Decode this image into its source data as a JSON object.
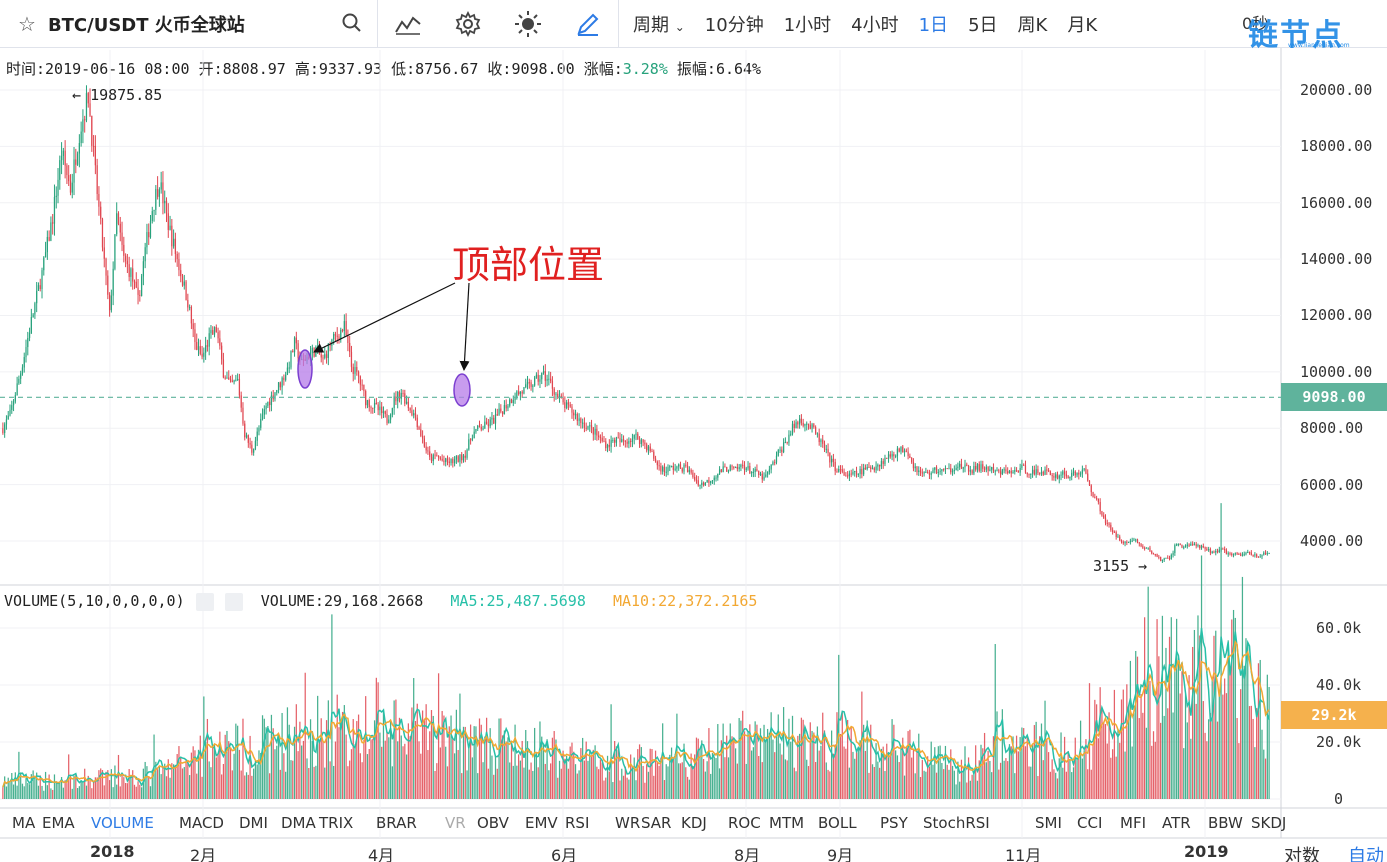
{
  "toolbar": {
    "symbol": "BTC/USDT 火币全球站",
    "periods": [
      "周期",
      "10分钟",
      "1小时",
      "4小时",
      "1日",
      "5日",
      "周K",
      "月K"
    ],
    "active_period": "1日",
    "timer": "0秒",
    "logo_text": "链节点",
    "logo_sub": "www.lianjiedian.com"
  },
  "info": {
    "time_label": "时间:",
    "time": "2019-06-16 08:00",
    "open_label": "开:",
    "open": "8808.97",
    "high_label": "高:",
    "high": "9337.93",
    "low_label": "低:",
    "low": "8756.67",
    "close_label": "收:",
    "close": "9098.00",
    "change_label": "涨幅:",
    "change": "3.28%",
    "amplitude_label": "振幅:",
    "amplitude": "6.64%"
  },
  "price_axis": {
    "ticks": [
      "20000.00",
      "18000.00",
      "16000.00",
      "14000.00",
      "12000.00",
      "10000.00",
      "8000.00",
      "6000.00",
      "4000.00"
    ],
    "current": "9098.00"
  },
  "markers": {
    "high": "19875.85",
    "low": "3155"
  },
  "annotation": "顶部位置",
  "volume": {
    "title": "VOLUME(5,10,0,0,0,0)",
    "value_label": "VOLUME:",
    "value": "29,168.2668",
    "ma5_label": "MA5:",
    "ma5": "25,487.5698",
    "ma10_label": "MA10:",
    "ma10": "22,372.2165",
    "ticks": [
      "60.0k",
      "40.0k",
      "20.0k",
      "0"
    ],
    "current": "29.2k"
  },
  "indicators": [
    "MA",
    "EMA",
    "VOLUME",
    "MACD",
    "DMI",
    "DMA",
    "TRIX",
    "BRAR",
    "VR",
    "OBV",
    "EMV",
    "RSI",
    "WR",
    "SAR",
    "KDJ",
    "ROC",
    "MTM",
    "BOLL",
    "PSY",
    "StochRSI",
    "SMI",
    "CCI",
    "MFI",
    "ATR",
    "BBW",
    "SKDJ"
  ],
  "active_indicator": "VOLUME",
  "time_axis": [
    "2018",
    "2月",
    "4月",
    "6月",
    "8月",
    "9月",
    "11月",
    "2019"
  ],
  "scale_buttons": {
    "log": "对数",
    "auto": "自动"
  },
  "colors": {
    "up": "#27a27c",
    "down": "#e0454f",
    "accent": "#2d7be5",
    "ma5": "#27c0a8",
    "ma10": "#f2a833",
    "price_line": "#5fb39c"
  },
  "chart_data": {
    "type": "candlestick",
    "price_ylim": [
      2800,
      20500
    ],
    "volume_ylim": [
      0,
      70000
    ],
    "anchors": [
      [
        0,
        8000
      ],
      [
        4,
        8500
      ],
      [
        10,
        10000
      ],
      [
        16,
        11800
      ],
      [
        22,
        13500
      ],
      [
        28,
        15500
      ],
      [
        33,
        17800
      ],
      [
        38,
        16500
      ],
      [
        43,
        18500
      ],
      [
        48,
        19800
      ],
      [
        52,
        17000
      ],
      [
        56,
        14500
      ],
      [
        60,
        12000
      ],
      [
        64,
        15500
      ],
      [
        68,
        14000
      ],
      [
        72,
        13500
      ],
      [
        76,
        12500
      ],
      [
        80,
        14300
      ],
      [
        84,
        15800
      ],
      [
        88,
        16800
      ],
      [
        92,
        15500
      ],
      [
        96,
        14500
      ],
      [
        100,
        13500
      ],
      [
        104,
        12500
      ],
      [
        108,
        11000
      ],
      [
        112,
        10500
      ],
      [
        116,
        11200
      ],
      [
        120,
        11500
      ],
      [
        124,
        10000
      ],
      [
        128,
        9500
      ],
      [
        132,
        9700
      ],
      [
        136,
        7800
      ],
      [
        140,
        7200
      ],
      [
        144,
        8000
      ],
      [
        148,
        8800
      ],
      [
        152,
        9200
      ],
      [
        156,
        9600
      ],
      [
        160,
        10100
      ],
      [
        164,
        11000
      ],
      [
        168,
        10300
      ],
      [
        172,
        10600
      ],
      [
        176,
        10800
      ],
      [
        180,
        10400
      ],
      [
        184,
        11000
      ],
      [
        188,
        11300
      ],
      [
        192,
        11600
      ],
      [
        196,
        10200
      ],
      [
        200,
        9800
      ],
      [
        204,
        9000
      ],
      [
        208,
        8800
      ],
      [
        212,
        8600
      ],
      [
        216,
        8300
      ],
      [
        220,
        9000
      ],
      [
        224,
        9300
      ],
      [
        228,
        8800
      ],
      [
        232,
        8400
      ],
      [
        236,
        7600
      ],
      [
        240,
        6900
      ],
      [
        244,
        7000
      ],
      [
        248,
        6800
      ],
      [
        252,
        6800
      ],
      [
        256,
        6900
      ],
      [
        260,
        7100
      ],
      [
        264,
        7800
      ],
      [
        268,
        8000
      ],
      [
        272,
        8100
      ],
      [
        276,
        8300
      ],
      [
        280,
        8600
      ],
      [
        284,
        8900
      ],
      [
        288,
        9200
      ],
      [
        292,
        9300
      ],
      [
        296,
        9500
      ],
      [
        300,
        9700
      ],
      [
        304,
        9900
      ],
      [
        308,
        9600
      ],
      [
        312,
        9100
      ],
      [
        316,
        8800
      ],
      [
        320,
        8600
      ],
      [
        324,
        8300
      ],
      [
        328,
        8100
      ],
      [
        332,
        7900
      ],
      [
        336,
        7600
      ],
      [
        340,
        7400
      ],
      [
        344,
        7600
      ],
      [
        348,
        7500
      ],
      [
        352,
        7600
      ],
      [
        356,
        7700
      ],
      [
        360,
        7500
      ],
      [
        364,
        7200
      ],
      [
        368,
        6700
      ],
      [
        372,
        6500
      ],
      [
        376,
        6600
      ],
      [
        380,
        6600
      ],
      [
        384,
        6600
      ],
      [
        388,
        6300
      ],
      [
        392,
        6000
      ],
      [
        396,
        6100
      ],
      [
        400,
        6300
      ],
      [
        404,
        6500
      ],
      [
        408,
        6600
      ],
      [
        412,
        6500
      ],
      [
        416,
        6700
      ],
      [
        420,
        6500
      ],
      [
        424,
        6400
      ],
      [
        428,
        6200
      ],
      [
        432,
        6600
      ],
      [
        436,
        7100
      ],
      [
        440,
        7500
      ],
      [
        444,
        8000
      ],
      [
        448,
        8300
      ],
      [
        452,
        8200
      ],
      [
        456,
        7900
      ],
      [
        460,
        7500
      ],
      [
        464,
        7000
      ],
      [
        468,
        6600
      ],
      [
        472,
        6400
      ],
      [
        476,
        6300
      ],
      [
        480,
        6400
      ],
      [
        484,
        6500
      ],
      [
        488,
        6600
      ],
      [
        492,
        6700
      ],
      [
        496,
        6900
      ],
      [
        500,
        7100
      ],
      [
        504,
        7200
      ],
      [
        508,
        7300
      ],
      [
        512,
        6700
      ],
      [
        516,
        6400
      ],
      [
        520,
        6400
      ],
      [
        524,
        6500
      ],
      [
        528,
        6500
      ],
      [
        532,
        6500
      ],
      [
        536,
        6700
      ],
      [
        540,
        6600
      ],
      [
        544,
        6500
      ],
      [
        548,
        6600
      ],
      [
        552,
        6600
      ],
      [
        556,
        6500
      ],
      [
        560,
        6400
      ],
      [
        564,
        6500
      ],
      [
        568,
        6400
      ],
      [
        572,
        6600
      ],
      [
        576,
        6500
      ],
      [
        580,
        6400
      ],
      [
        584,
        6500
      ],
      [
        588,
        6400
      ],
      [
        592,
        6300
      ],
      [
        596,
        6400
      ],
      [
        600,
        6300
      ],
      [
        604,
        6400
      ],
      [
        608,
        6500
      ],
      [
        612,
        5800
      ],
      [
        616,
        5300
      ],
      [
        620,
        4700
      ],
      [
        624,
        4300
      ],
      [
        628,
        4100
      ],
      [
        632,
        3900
      ],
      [
        636,
        4100
      ],
      [
        640,
        3800
      ],
      [
        644,
        3700
      ],
      [
        648,
        3500
      ],
      [
        652,
        3300
      ],
      [
        656,
        3400
      ],
      [
        660,
        3900
      ],
      [
        664,
        3800
      ],
      [
        668,
        3900
      ],
      [
        672,
        3800
      ],
      [
        676,
        3700
      ],
      [
        680,
        3600
      ],
      [
        684,
        3700
      ],
      [
        688,
        3600
      ],
      [
        692,
        3500
      ],
      [
        696,
        3500
      ],
      [
        700,
        3600
      ],
      [
        704,
        3500
      ],
      [
        708,
        3500
      ],
      [
        712,
        3550
      ]
    ],
    "volume_profile": [
      [
        0,
        6000
      ],
      [
        60,
        7000
      ],
      [
        90,
        9000
      ],
      [
        110,
        16000
      ],
      [
        140,
        18000
      ],
      [
        180,
        24000
      ],
      [
        220,
        22000
      ],
      [
        260,
        20000
      ],
      [
        300,
        16000
      ],
      [
        340,
        13000
      ],
      [
        380,
        12000
      ],
      [
        420,
        21000
      ],
      [
        460,
        20000
      ],
      [
        500,
        18000
      ],
      [
        540,
        10000
      ],
      [
        560,
        20000
      ],
      [
        600,
        15000
      ],
      [
        620,
        28000
      ],
      [
        640,
        42000
      ],
      [
        680,
        38000
      ],
      [
        700,
        44000
      ],
      [
        712,
        27000
      ]
    ]
  }
}
